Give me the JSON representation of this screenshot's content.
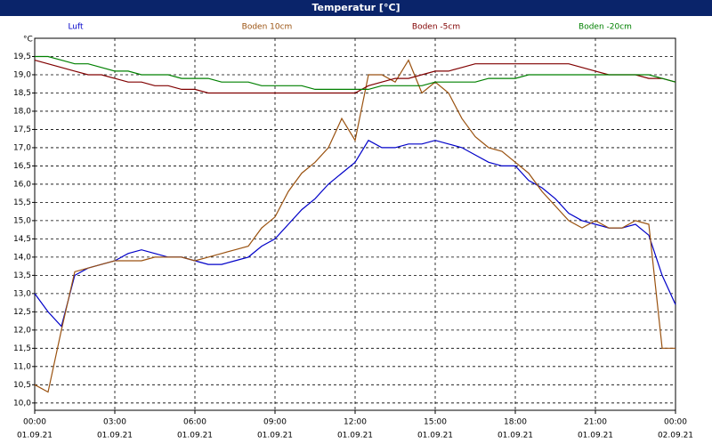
{
  "chart_data": {
    "type": "line",
    "title": "Temperatur [°C]",
    "y_unit": "°C",
    "x": [
      0,
      0.5,
      1,
      1.5,
      2,
      2.5,
      3,
      3.5,
      4,
      4.5,
      5,
      5.5,
      6,
      6.5,
      7,
      7.5,
      8,
      8.5,
      9,
      9.5,
      10,
      10.5,
      11,
      11.5,
      12,
      12.5,
      13,
      13.5,
      14,
      14.5,
      15,
      15.5,
      16,
      16.5,
      17,
      17.5,
      18,
      18.5,
      19,
      19.5,
      20,
      20.5,
      21,
      21.5,
      22,
      22.5,
      23,
      23.5,
      24
    ],
    "series": [
      {
        "name": "Luft",
        "color": "#0000c8",
        "values": [
          13.0,
          12.5,
          12.1,
          13.5,
          13.7,
          13.8,
          13.9,
          14.1,
          14.2,
          14.1,
          14.0,
          14.0,
          13.9,
          13.8,
          13.8,
          13.9,
          14.0,
          14.3,
          14.5,
          14.9,
          15.3,
          15.6,
          16.0,
          16.3,
          16.6,
          17.2,
          17.0,
          17.0,
          17.1,
          17.1,
          17.2,
          17.1,
          17.0,
          16.8,
          16.6,
          16.5,
          16.5,
          16.1,
          15.9,
          15.6,
          15.2,
          15.0,
          14.9,
          14.8,
          14.8,
          14.9,
          14.6,
          13.5,
          12.7
        ]
      },
      {
        "name": "Boden 10cm",
        "color": "#9a5210",
        "values": [
          10.5,
          10.3,
          12.0,
          13.6,
          13.7,
          13.8,
          13.9,
          13.9,
          13.9,
          14.0,
          14.0,
          14.0,
          13.9,
          14.0,
          14.1,
          14.2,
          14.3,
          14.8,
          15.1,
          15.8,
          16.3,
          16.6,
          17.0,
          17.8,
          17.2,
          19.0,
          19.0,
          18.8,
          19.4,
          18.5,
          18.8,
          18.5,
          17.8,
          17.3,
          17.0,
          16.9,
          16.6,
          16.3,
          15.8,
          15.4,
          15.0,
          14.8,
          15.0,
          14.8,
          14.8,
          15.0,
          14.9,
          11.5,
          11.5
        ]
      },
      {
        "name": "Boden -5cm",
        "color": "#800000",
        "values": [
          19.4,
          19.3,
          19.2,
          19.1,
          19.0,
          19.0,
          18.9,
          18.8,
          18.8,
          18.7,
          18.7,
          18.6,
          18.6,
          18.5,
          18.5,
          18.5,
          18.5,
          18.5,
          18.5,
          18.5,
          18.5,
          18.5,
          18.5,
          18.5,
          18.5,
          18.7,
          18.8,
          18.9,
          18.9,
          19.0,
          19.1,
          19.1,
          19.2,
          19.3,
          19.3,
          19.3,
          19.3,
          19.3,
          19.3,
          19.3,
          19.3,
          19.2,
          19.1,
          19.0,
          19.0,
          19.0,
          18.9,
          18.9,
          18.8
        ]
      },
      {
        "name": "Boden -20cm",
        "color": "#008000",
        "values": [
          19.5,
          19.5,
          19.4,
          19.3,
          19.3,
          19.2,
          19.1,
          19.1,
          19.0,
          19.0,
          19.0,
          18.9,
          18.9,
          18.9,
          18.8,
          18.8,
          18.8,
          18.7,
          18.7,
          18.7,
          18.7,
          18.6,
          18.6,
          18.6,
          18.6,
          18.6,
          18.7,
          18.7,
          18.7,
          18.7,
          18.8,
          18.8,
          18.8,
          18.8,
          18.9,
          18.9,
          18.9,
          19.0,
          19.0,
          19.0,
          19.0,
          19.0,
          19.0,
          19.0,
          19.0,
          19.0,
          19.0,
          18.9,
          18.8
        ]
      }
    ],
    "xlim": [
      0,
      24
    ],
    "xticks": [
      {
        "value": 0,
        "label": "00:00",
        "date": "01.09.21"
      },
      {
        "value": 3,
        "label": "03:00",
        "date": "01.09.21"
      },
      {
        "value": 6,
        "label": "06:00",
        "date": "01.09.21"
      },
      {
        "value": 9,
        "label": "09:00",
        "date": "01.09.21"
      },
      {
        "value": 12,
        "label": "12:00",
        "date": "01.09.21"
      },
      {
        "value": 15,
        "label": "15:00",
        "date": "01.09.21"
      },
      {
        "value": 18,
        "label": "18:00",
        "date": "01.09.21"
      },
      {
        "value": 21,
        "label": "21:00",
        "date": "01.09.21"
      },
      {
        "value": 24,
        "label": "00:00",
        "date": "02.09.21"
      }
    ],
    "ylim": [
      9.8,
      20.0
    ],
    "yticks": [
      {
        "value": 10.0,
        "label": "10,0"
      },
      {
        "value": 10.5,
        "label": "10,5"
      },
      {
        "value": 11.0,
        "label": "11,0"
      },
      {
        "value": 11.5,
        "label": "11,5"
      },
      {
        "value": 12.0,
        "label": "12,0"
      },
      {
        "value": 12.5,
        "label": "12,5"
      },
      {
        "value": 13.0,
        "label": "13,0"
      },
      {
        "value": 13.5,
        "label": "13,5"
      },
      {
        "value": 14.0,
        "label": "14,0"
      },
      {
        "value": 14.5,
        "label": "14,5"
      },
      {
        "value": 15.0,
        "label": "15,0"
      },
      {
        "value": 15.5,
        "label": "15,5"
      },
      {
        "value": 16.0,
        "label": "16,0"
      },
      {
        "value": 16.5,
        "label": "16,5"
      },
      {
        "value": 17.0,
        "label": "17,0"
      },
      {
        "value": 17.5,
        "label": "17,5"
      },
      {
        "value": 18.0,
        "label": "18,0"
      },
      {
        "value": 18.5,
        "label": "18,5"
      },
      {
        "value": 19.0,
        "label": "19,0"
      },
      {
        "value": 19.5,
        "label": "19,5"
      }
    ],
    "grid": true
  }
}
